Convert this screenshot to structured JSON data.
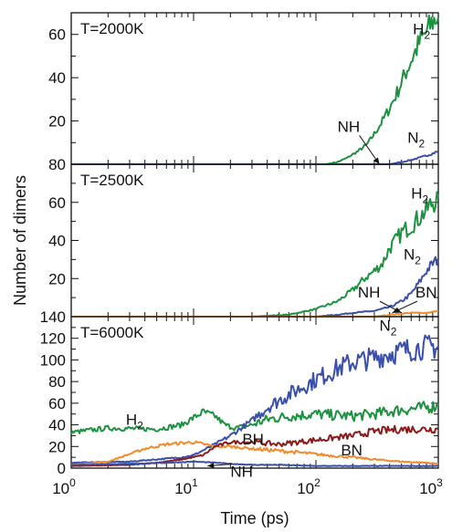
{
  "chart_data": {
    "type": "line",
    "xlabel": "Time (ps)",
    "ylabel": "Number of dimers",
    "xscale": "log",
    "xlim": [
      1,
      1000
    ],
    "x_tick_labels": [
      {
        "base": "10",
        "exp": "0",
        "value": 1
      },
      {
        "base": "10",
        "exp": "1",
        "value": 10
      },
      {
        "base": "10",
        "exp": "2",
        "value": 100
      },
      {
        "base": "10",
        "exp": "3",
        "value": 1000
      }
    ],
    "colors": {
      "H2": "#1e9140",
      "N2": "#3a4fa8",
      "BN": "#f08a2c",
      "BH": "#8b1a1a",
      "NH": "#3a4fa8"
    },
    "panels": [
      {
        "title": "T=2000K",
        "ylim": [
          0,
          70
        ],
        "yticks": [
          0,
          20,
          40,
          60
        ],
        "ytick_labels": [
          "",
          "20",
          "40",
          "60"
        ],
        "series": [
          {
            "key": "H2",
            "points": [
              [
                1,
                0
              ],
              [
                120,
                0
              ],
              [
                150,
                1
              ],
              [
                180,
                3
              ],
              [
                220,
                6
              ],
              [
                260,
                9
              ],
              [
                300,
                14
              ],
              [
                350,
                20
              ],
              [
                400,
                26
              ],
              [
                460,
                33
              ],
              [
                520,
                40
              ],
              [
                600,
                48
              ],
              [
                700,
                56
              ],
              [
                800,
                61
              ],
              [
                900,
                66
              ],
              [
                1000,
                68
              ]
            ]
          },
          {
            "key": "N2",
            "points": [
              [
                1,
                0
              ],
              [
                400,
                0
              ],
              [
                500,
                1
              ],
              [
                600,
                2
              ],
              [
                700,
                3
              ],
              [
                800,
                4
              ],
              [
                900,
                5
              ],
              [
                1000,
                6
              ]
            ]
          }
        ],
        "labels": [
          {
            "key": "H2",
            "base": "H",
            "sub": "2",
            "x": 620,
            "y": 60
          },
          {
            "key": "N2",
            "base": "N",
            "sub": "2",
            "x": 560,
            "y": 10
          },
          {
            "key": "NH",
            "text": "NH",
            "x": 150,
            "y": 15,
            "arrow_to": [
              330,
              0
            ]
          }
        ]
      },
      {
        "title": "T=2500K",
        "ylim": [
          0,
          80
        ],
        "yticks": [
          0,
          20,
          40,
          60,
          80
        ],
        "ytick_labels": [
          "",
          "20",
          "40",
          "60",
          "80"
        ],
        "series": [
          {
            "key": "H2",
            "points": [
              [
                1,
                0
              ],
              [
                30,
                0
              ],
              [
                60,
                1
              ],
              [
                100,
                4
              ],
              [
                150,
                8
              ],
              [
                200,
                14
              ],
              [
                250,
                20
              ],
              [
                300,
                24
              ],
              [
                350,
                28
              ],
              [
                400,
                36
              ],
              [
                450,
                40
              ],
              [
                500,
                44
              ],
              [
                600,
                48
              ],
              [
                700,
                52
              ],
              [
                800,
                56
              ],
              [
                900,
                60
              ],
              [
                1000,
                62
              ]
            ]
          },
          {
            "key": "N2",
            "points": [
              [
                1,
                0
              ],
              [
                100,
                0
              ],
              [
                150,
                1
              ],
              [
                200,
                2
              ],
              [
                300,
                3
              ],
              [
                400,
                5
              ],
              [
                500,
                8
              ],
              [
                600,
                12
              ],
              [
                700,
                18
              ],
              [
                800,
                24
              ],
              [
                900,
                28
              ],
              [
                1000,
                30
              ]
            ]
          },
          {
            "key": "BN",
            "points": [
              [
                1,
                0
              ],
              [
                300,
                0
              ],
              [
                400,
                1
              ],
              [
                600,
                2
              ],
              [
                800,
                2
              ],
              [
                1000,
                3
              ]
            ]
          }
        ],
        "labels": [
          {
            "key": "H2",
            "base": "H",
            "sub": "2",
            "x": 600,
            "y": 62
          },
          {
            "key": "N2",
            "base": "N",
            "sub": "2",
            "x": 520,
            "y": 30
          },
          {
            "key": "NH",
            "text": "NH",
            "x": 220,
            "y": 10,
            "arrow_to": [
              500,
              2
            ]
          },
          {
            "key": "BN",
            "text": "BN",
            "x": 650,
            "y": 10,
            "arrow_to": [
              420,
              2
            ]
          }
        ]
      },
      {
        "title": "T=6000K",
        "ylim": [
          0,
          140
        ],
        "yticks": [
          0,
          20,
          40,
          60,
          80,
          100,
          120,
          140
        ],
        "ytick_labels": [
          "0",
          "20",
          "40",
          "60",
          "80",
          "100",
          "120",
          "140"
        ],
        "series": [
          {
            "key": "H2",
            "points": [
              [
                1,
                33
              ],
              [
                2,
                37
              ],
              [
                5,
                36
              ],
              [
                8,
                40
              ],
              [
                12,
                52
              ],
              [
                15,
                48
              ],
              [
                18,
                40
              ],
              [
                22,
                37
              ],
              [
                30,
                40
              ],
              [
                40,
                45
              ],
              [
                60,
                48
              ],
              [
                100,
                50
              ],
              [
                200,
                48
              ],
              [
                300,
                50
              ],
              [
                500,
                54
              ],
              [
                800,
                56
              ],
              [
                1000,
                58
              ]
            ]
          },
          {
            "key": "N2",
            "points": [
              [
                1,
                5
              ],
              [
                3,
                6
              ],
              [
                8,
                10
              ],
              [
                10,
                12
              ],
              [
                15,
                22
              ],
              [
                20,
                30
              ],
              [
                30,
                44
              ],
              [
                40,
                56
              ],
              [
                60,
                68
              ],
              [
                100,
                82
              ],
              [
                150,
                92
              ],
              [
                200,
                98
              ],
              [
                300,
                102
              ],
              [
                400,
                106
              ],
              [
                600,
                110
              ],
              [
                800,
                112
              ],
              [
                1000,
                112
              ]
            ]
          },
          {
            "key": "BN",
            "points": [
              [
                1,
                3
              ],
              [
                2,
                6
              ],
              [
                4,
                18
              ],
              [
                6,
                22
              ],
              [
                10,
                24
              ],
              [
                15,
                20
              ],
              [
                20,
                20
              ],
              [
                30,
                18
              ],
              [
                50,
                16
              ],
              [
                80,
                14
              ],
              [
                120,
                12
              ],
              [
                200,
                10
              ],
              [
                300,
                8
              ],
              [
                500,
                6
              ],
              [
                800,
                5
              ],
              [
                1000,
                4
              ]
            ]
          },
          {
            "key": "BH",
            "points": [
              [
                1,
                2
              ],
              [
                3,
                3
              ],
              [
                5,
                5
              ],
              [
                8,
                8
              ],
              [
                12,
                12
              ],
              [
                15,
                20
              ],
              [
                20,
                24
              ],
              [
                30,
                24
              ],
              [
                50,
                22
              ],
              [
                70,
                24
              ],
              [
                100,
                26
              ],
              [
                200,
                30
              ],
              [
                300,
                34
              ],
              [
                500,
                36
              ],
              [
                800,
                36
              ],
              [
                1000,
                36
              ]
            ]
          },
          {
            "key": "NH",
            "points": [
              [
                1,
                3
              ],
              [
                3,
                4
              ],
              [
                6,
                5
              ],
              [
                10,
                6
              ],
              [
                15,
                5
              ],
              [
                20,
                4
              ],
              [
                30,
                3
              ],
              [
                50,
                3
              ],
              [
                100,
                2
              ],
              [
                300,
                2
              ],
              [
                1000,
                2
              ]
            ]
          }
        ],
        "labels": [
          {
            "key": "N2",
            "base": "N",
            "sub": "2",
            "x": 330,
            "y": 127
          },
          {
            "key": "H2",
            "base": "H",
            "sub": "2",
            "x": 2.8,
            "y": 40
          },
          {
            "key": "BH",
            "text": "BH",
            "x": 25,
            "y": 22
          },
          {
            "key": "BN",
            "text": "BN",
            "x": 160,
            "y": 12
          },
          {
            "key": "NH",
            "text": "NH",
            "x": 20,
            "y": -8,
            "arrow_to": [
              13,
              2
            ]
          }
        ]
      }
    ]
  }
}
